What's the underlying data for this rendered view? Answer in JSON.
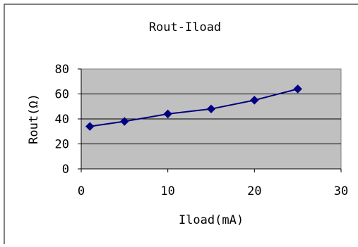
{
  "chart_data": {
    "type": "line",
    "title": "Rout-Iload",
    "xlabel": "Iload(mA)",
    "ylabel": "Rout(Ω)",
    "xlim": [
      0,
      30
    ],
    "ylim": [
      0,
      80
    ],
    "x_ticks": [
      "0",
      "10",
      "20",
      "30"
    ],
    "y_ticks": [
      "0",
      "20",
      "40",
      "60",
      "80"
    ],
    "grid": "horizontal",
    "legend": "none",
    "series": [
      {
        "x": [
          1,
          5,
          10,
          15,
          20,
          25
        ],
        "y": [
          34,
          38,
          44,
          48,
          55,
          64
        ],
        "marker": "diamond"
      }
    ],
    "colors": {
      "plot_background": "#c0c0c0",
      "series_line": "#000080",
      "marker_fill": "#000080",
      "gridline": "#000000"
    }
  }
}
